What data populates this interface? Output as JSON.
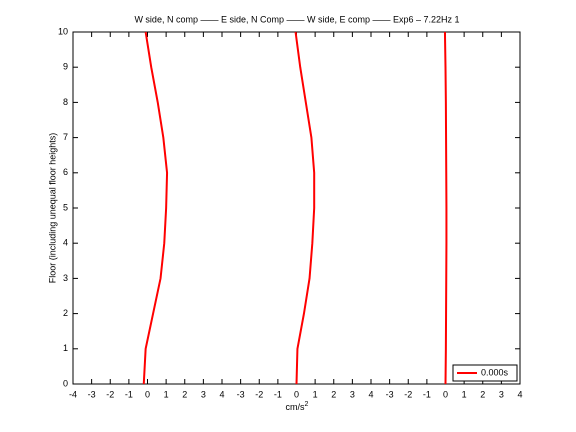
{
  "chart_data": {
    "type": "line",
    "title": "W side, N comp —— E side, N Comp —— W side, E comp —— Exp6 – 7.22Hz 1",
    "ylabel": "Floor (including unequal floor heights)",
    "xlabel": "cm/s",
    "xlabel_superscript": "2",
    "ylim": [
      0,
      10
    ],
    "yticks": [
      0,
      1,
      2,
      3,
      4,
      5,
      6,
      7,
      8,
      9,
      10
    ],
    "floors": [
      0,
      1,
      2,
      3,
      4,
      5,
      6,
      7,
      8,
      9,
      10
    ],
    "legend": "lower right",
    "panels": [
      {
        "xlim": [
          -4,
          4
        ],
        "xticks": [
          -4,
          -3,
          -2,
          -1,
          0,
          1,
          2,
          3,
          4
        ],
        "series": [
          {
            "name": "0.000s",
            "color": "#ff0000",
            "values": [
              -0.2,
              -0.1,
              0.3,
              0.7,
              0.9,
              1.0,
              1.05,
              0.85,
              0.55,
              0.2,
              -0.1
            ]
          }
        ]
      },
      {
        "xlim": [
          -4,
          4
        ],
        "xticks": [
          -3,
          -2,
          -1,
          0,
          1,
          2,
          3,
          4
        ],
        "series": [
          {
            "color": "#ff0000",
            "values": [
              0,
              0.05,
              0.4,
              0.7,
              0.85,
              0.95,
              0.95,
              0.8,
              0.5,
              0.2,
              -0.05
            ]
          }
        ]
      },
      {
        "xlim": [
          -4,
          4
        ],
        "xticks": [
          -3,
          -2,
          -1,
          0,
          1,
          2,
          3,
          4
        ],
        "series": [
          {
            "color": "#ff0000",
            "values": [
              0,
              0.02,
              0.03,
              0.04,
              0.05,
              0.05,
              0.04,
              0.03,
              0.02,
              0,
              -0.03
            ]
          }
        ]
      }
    ]
  }
}
